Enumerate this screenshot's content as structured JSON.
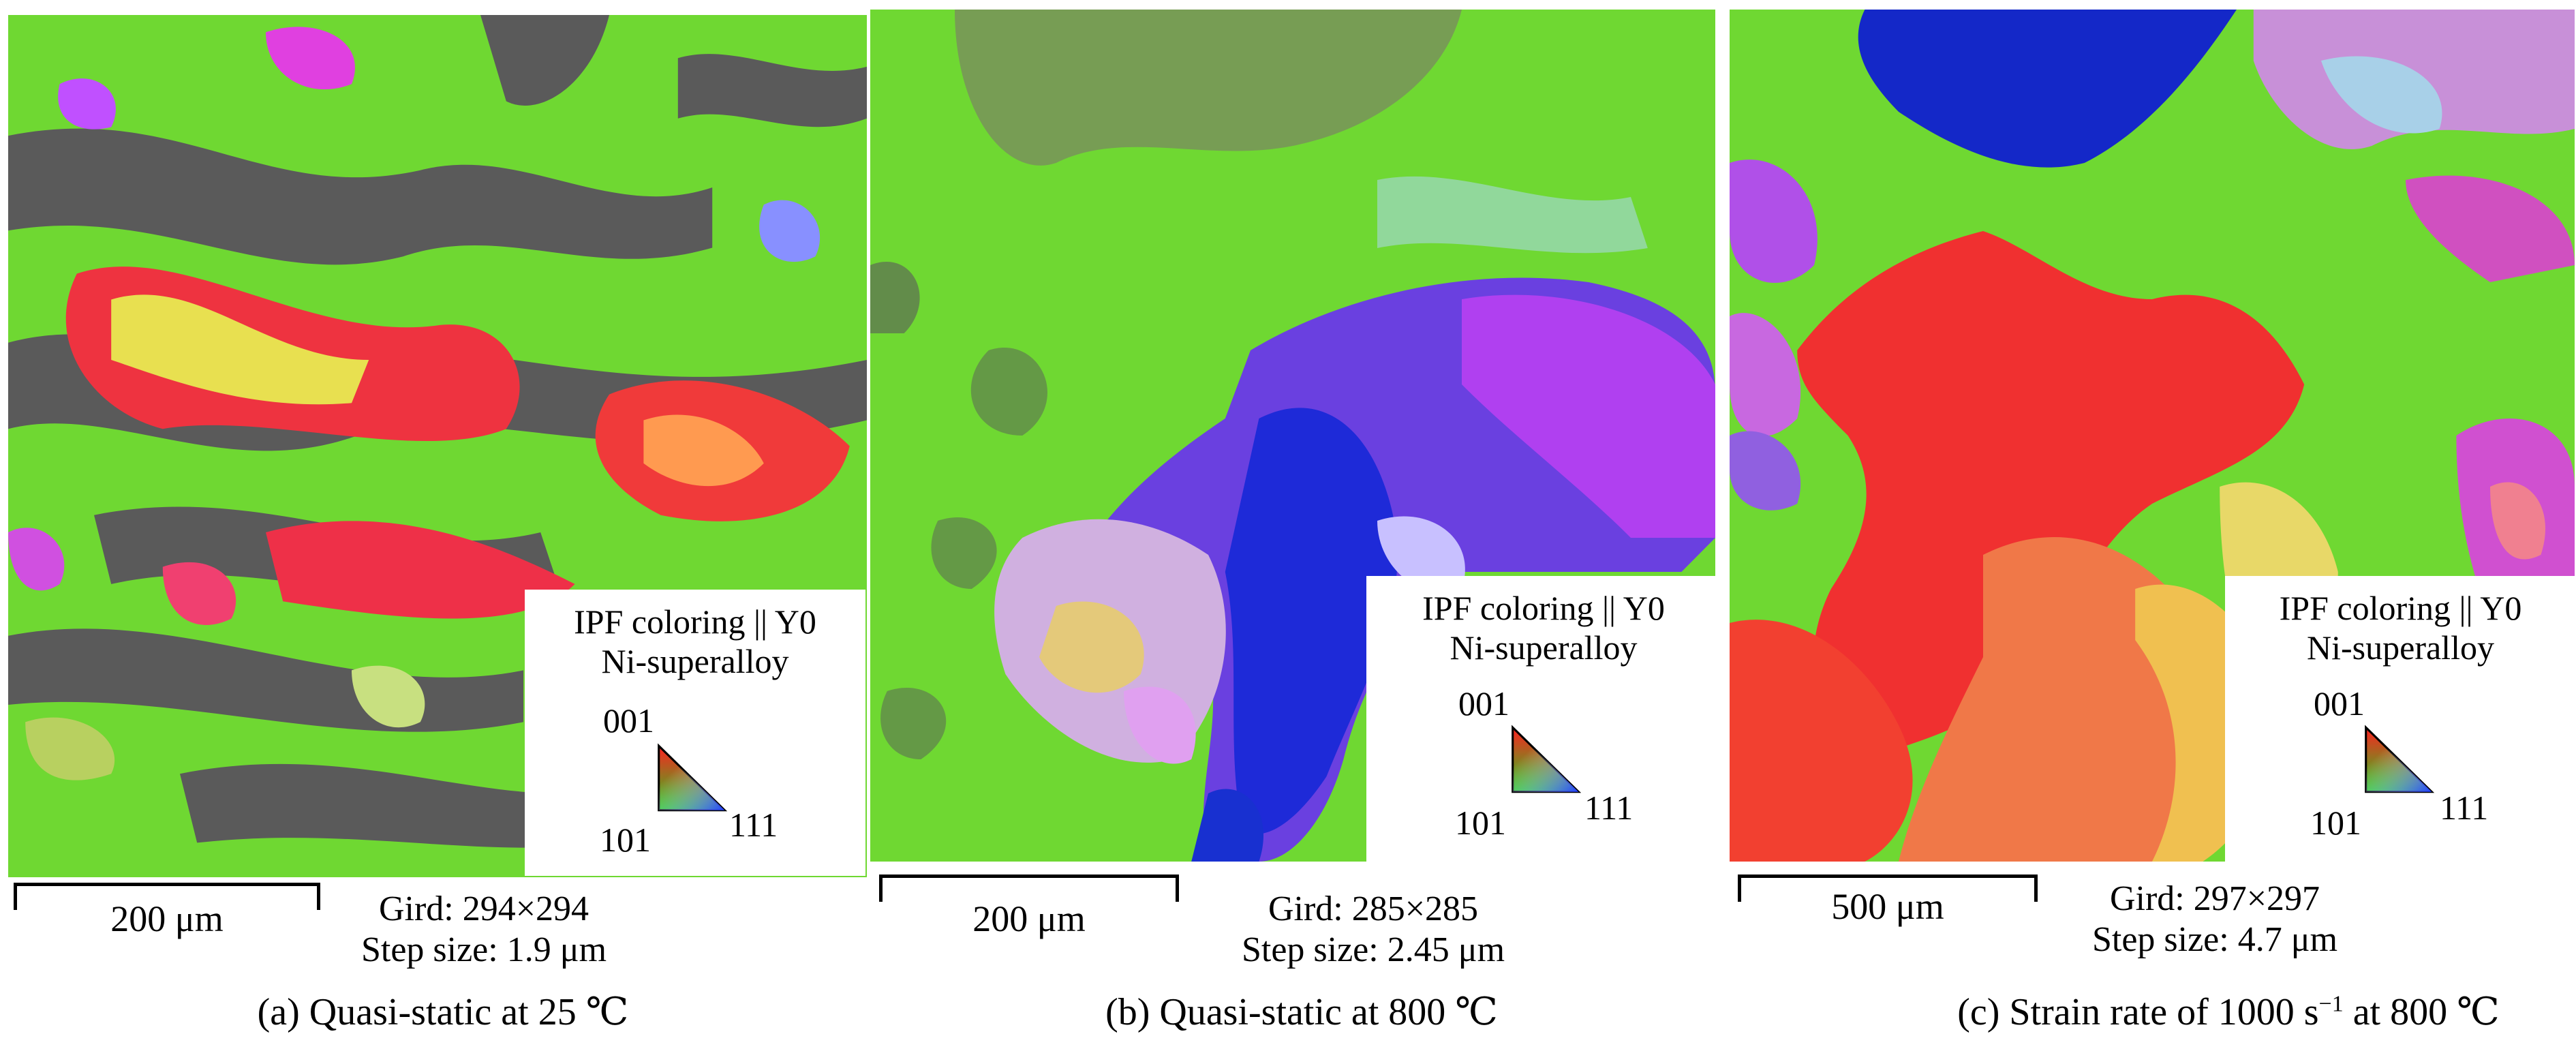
{
  "panels": [
    {
      "legend": {
        "title": "IPF coloring || Y0",
        "material": "Ni-superalloy",
        "pole_001": "001",
        "pole_101": "101",
        "pole_111": "111"
      },
      "scale_label": "200 μm",
      "grid": "Gird: 294×294",
      "step": "Step size: 1.9 μm",
      "caption": "(a) Quasi-static at 25 ℃"
    },
    {
      "legend": {
        "title": "IPF coloring || Y0",
        "material": "Ni-superalloy",
        "pole_001": "001",
        "pole_101": "101",
        "pole_111": "111"
      },
      "scale_label": "200 μm",
      "grid": "Gird: 285×285",
      "step": "Step size: 2.45 μm",
      "caption": "(b) Quasi-static at 800 ℃"
    },
    {
      "legend": {
        "title": "IPF coloring || Y0",
        "material": "Ni-superalloy",
        "pole_001": "001",
        "pole_101": "101",
        "pole_111": "111"
      },
      "scale_label": "500 μm",
      "grid": "Gird: 297×297",
      "step": "Step size: 4.7 μm",
      "caption_prefix": "(c) Strain rate of 1000 s",
      "caption_sup": "−1",
      "caption_suffix": " at 800 ℃"
    }
  ],
  "colors": {
    "green": "#6fd832",
    "red": "#f03030",
    "blue": "#1a2fd0",
    "magenta": "#c040f0",
    "gray": "#595959",
    "yellow": "#d8e840"
  }
}
